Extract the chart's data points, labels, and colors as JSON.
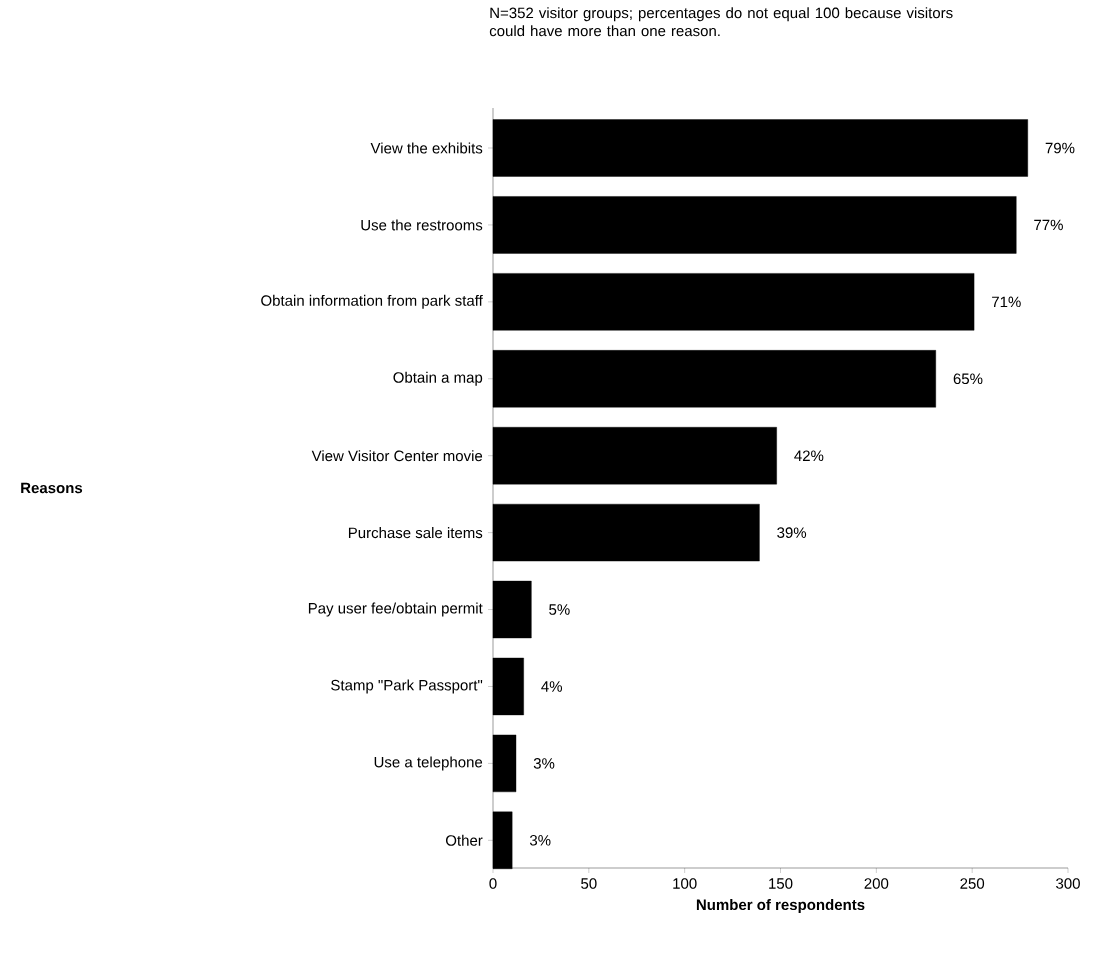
{
  "chart_data": {
    "type": "bar",
    "orientation": "horizontal",
    "title": "N=352 visitor groups; percentages do not equal 100 because visitors could have more than one reason.",
    "xlabel": "Number of respondents",
    "annotations": [
      "Reasons",
      {
        "text": "79%",
        "x": 279,
        "y": "View the exhibits"
      },
      {
        "text": "77%",
        "x": 273,
        "y": "Use the restrooms"
      },
      {
        "text": "71%",
        "x": 251,
        "y": "Obtain information from park staff"
      },
      {
        "text": "65%",
        "x": 231,
        "y": "Obtain a map"
      },
      {
        "text": "42%",
        "x": 148,
        "y": "View Visitor Center movie"
      },
      {
        "text": "39%",
        "x": 139,
        "y": "Purchase sale items"
      },
      {
        "text": "5%",
        "x": 20,
        "y": "Pay user fee/obtain permit"
      },
      {
        "text": "4%",
        "x": 16,
        "y": "Stamp \"Park Passport\""
      },
      {
        "text": "3%",
        "x": 12,
        "y": "Use a telephone"
      },
      {
        "text": "3%",
        "x": 10,
        "y": "Other"
      }
    ],
    "categories": [
      "View the exhibits",
      "Use the restrooms",
      "Obtain information from park staff",
      "Obtain a map",
      "View Visitor Center movie",
      "Purchase sale items",
      "Pay user fee/obtain permit",
      "Stamp \"Park Passport\"",
      "Use a telephone",
      "Other"
    ],
    "values": [
      279,
      273,
      251,
      231,
      148,
      139,
      20,
      16,
      12,
      10
    ],
    "color": "#000000",
    "xlim": [
      0,
      300
    ],
    "xticks": [
      0,
      50,
      100,
      150,
      200,
      250,
      300
    ]
  }
}
